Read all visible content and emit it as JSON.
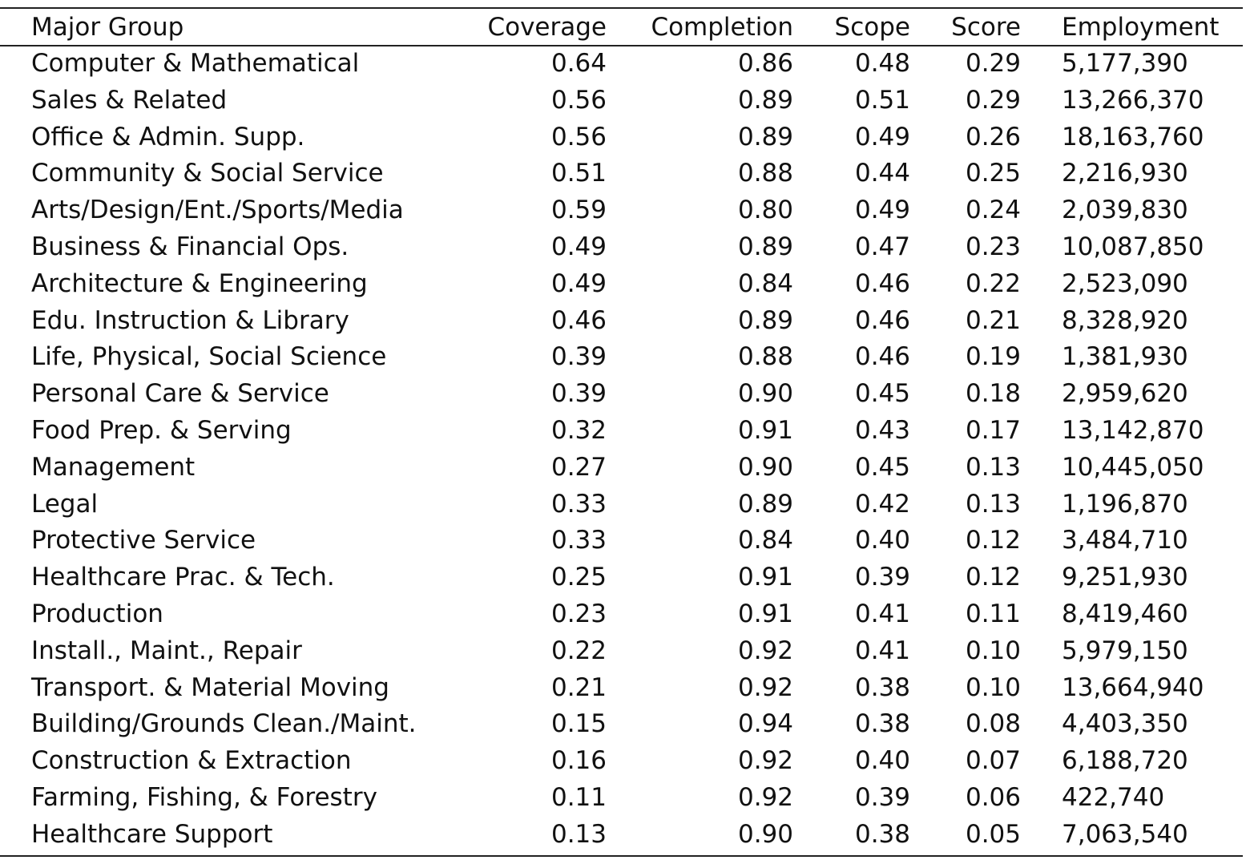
{
  "table": {
    "headers": [
      "Major Group",
      "Coverage",
      "Completion",
      "Scope",
      "Score",
      "Employment"
    ],
    "rows": [
      [
        "Computer & Mathematical",
        "0.64",
        "0.86",
        "0.48",
        "0.29",
        "5,177,390"
      ],
      [
        "Sales & Related",
        "0.56",
        "0.89",
        "0.51",
        "0.29",
        "13,266,370"
      ],
      [
        "Office & Admin. Supp.",
        "0.56",
        "0.89",
        "0.49",
        "0.26",
        "18,163,760"
      ],
      [
        "Community & Social Service",
        "0.51",
        "0.88",
        "0.44",
        "0.25",
        "2,216,930"
      ],
      [
        "Arts/Design/Ent./Sports/Media",
        "0.59",
        "0.80",
        "0.49",
        "0.24",
        "2,039,830"
      ],
      [
        "Business & Financial Ops.",
        "0.49",
        "0.89",
        "0.47",
        "0.23",
        "10,087,850"
      ],
      [
        "Architecture & Engineering",
        "0.49",
        "0.84",
        "0.46",
        "0.22",
        "2,523,090"
      ],
      [
        "Edu. Instruction & Library",
        "0.46",
        "0.89",
        "0.46",
        "0.21",
        "8,328,920"
      ],
      [
        "Life, Physical, Social Science",
        "0.39",
        "0.88",
        "0.46",
        "0.19",
        "1,381,930"
      ],
      [
        "Personal Care & Service",
        "0.39",
        "0.90",
        "0.45",
        "0.18",
        "2,959,620"
      ],
      [
        "Food Prep. & Serving",
        "0.32",
        "0.91",
        "0.43",
        "0.17",
        "13,142,870"
      ],
      [
        "Management",
        "0.27",
        "0.90",
        "0.45",
        "0.13",
        "10,445,050"
      ],
      [
        "Legal",
        "0.33",
        "0.89",
        "0.42",
        "0.13",
        "1,196,870"
      ],
      [
        "Protective Service",
        "0.33",
        "0.84",
        "0.40",
        "0.12",
        "3,484,710"
      ],
      [
        "Healthcare Prac. & Tech.",
        "0.25",
        "0.91",
        "0.39",
        "0.12",
        "9,251,930"
      ],
      [
        "Production",
        "0.23",
        "0.91",
        "0.41",
        "0.11",
        "8,419,460"
      ],
      [
        "Install., Maint., Repair",
        "0.22",
        "0.92",
        "0.41",
        "0.10",
        "5,979,150"
      ],
      [
        "Transport. & Material Moving",
        "0.21",
        "0.92",
        "0.38",
        "0.10",
        "13,664,940"
      ],
      [
        "Building/Grounds Clean./Maint.",
        "0.15",
        "0.94",
        "0.38",
        "0.08",
        "4,403,350"
      ],
      [
        "Construction & Extraction",
        "0.16",
        "0.92",
        "0.40",
        "0.07",
        "6,188,720"
      ],
      [
        "Farming, Fishing, & Forestry",
        "0.11",
        "0.92",
        "0.39",
        "0.06",
        "422,740"
      ],
      [
        "Healthcare Support",
        "0.13",
        "0.90",
        "0.38",
        "0.05",
        "7,063,540"
      ]
    ]
  }
}
